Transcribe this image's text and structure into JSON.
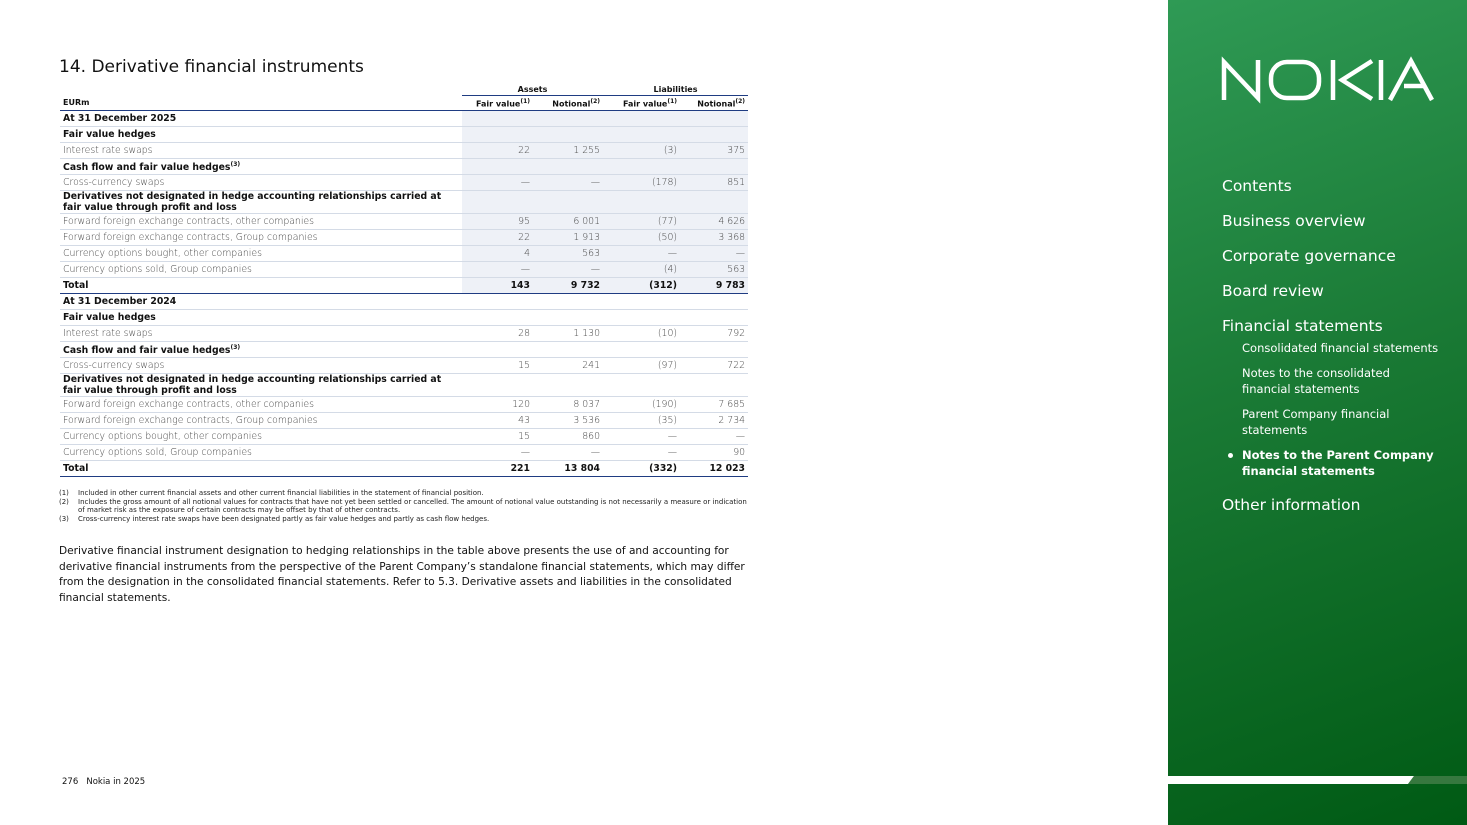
{
  "title": "14. Derivative financial instruments",
  "table": {
    "group_headers": [
      "Assets",
      "Liabilities"
    ],
    "columns": [
      {
        "text": "EURm"
      },
      {
        "text": "Fair value",
        "note": "(1)"
      },
      {
        "text": "Notional",
        "note": "(2)"
      },
      {
        "text": "Fair value",
        "note": "(1)"
      },
      {
        "text": "Notional",
        "note": "(2)"
      }
    ],
    "sections": [
      {
        "heading": "At 31 December 2025",
        "groups": [
          {
            "title": "Fair value hedges",
            "rows": [
              [
                "Interest rate swaps",
                "22",
                "1 255",
                "(3)",
                "375"
              ]
            ]
          },
          {
            "title": "Cash flow and fair value hedges",
            "note": "(3)",
            "rows": [
              [
                "Cross-currency swaps",
                "—",
                "—",
                "(178)",
                "851"
              ]
            ]
          },
          {
            "title": "Derivatives not designated in hedge accounting relationships carried at fair value through profit and loss",
            "rows": [
              [
                "Forward foreign exchange contracts, other companies",
                "95",
                "6 001",
                "(77)",
                "4 626"
              ],
              [
                "Forward foreign exchange contracts, Group companies",
                "22",
                "1 913",
                "(50)",
                "3 368"
              ],
              [
                "Currency options bought, other companies",
                "4",
                "563",
                "—",
                "—"
              ],
              [
                "Currency options sold, Group companies",
                "—",
                "—",
                "(4)",
                "563"
              ]
            ]
          }
        ],
        "total": [
          "Total",
          "143",
          "9 732",
          "(312)",
          "9 783"
        ]
      },
      {
        "heading": "At 31 December 2024",
        "groups": [
          {
            "title": "Fair value hedges",
            "rows": [
              [
                "Interest rate swaps",
                "28",
                "1 130",
                "(10)",
                "792"
              ]
            ]
          },
          {
            "title": "Cash flow and fair value hedges",
            "note": "(3)",
            "rows": [
              [
                "Cross-currency swaps",
                "15",
                "241",
                "(97)",
                "722"
              ]
            ]
          },
          {
            "title": "Derivatives not designated in hedge accounting relationships carried at fair value through profit and loss",
            "rows": [
              [
                "Forward foreign exchange contracts, other companies",
                "120",
                "8 037",
                "(190)",
                "7 685"
              ],
              [
                "Forward foreign exchange contracts, Group companies",
                "43",
                "3 536",
                "(35)",
                "2 734"
              ],
              [
                "Currency options bought, other companies",
                "15",
                "860",
                "—",
                "—"
              ],
              [
                "Currency options sold, Group companies",
                "—",
                "—",
                "—",
                "90"
              ]
            ]
          }
        ],
        "total": [
          "Total",
          "221",
          "13 804",
          "(332)",
          "12 023"
        ]
      }
    ]
  },
  "footnotes": [
    {
      "marker": "(1)",
      "text": "Included in other current financial assets and other current financial liabilities in the statement of financial position."
    },
    {
      "marker": "(2)",
      "text": "Includes the gross amount of all notional values for contracts that have not yet been settled or cancelled. The amount of notional value outstanding is not necessarily a measure or indication of market risk as the exposure of certain contracts may be offset by that of other contracts."
    },
    {
      "marker": "(3)",
      "text": "Cross-currency interest rate swaps have been designated partly as fair value hedges and partly as cash flow hedges."
    }
  ],
  "paragraph": "Derivative financial instrument designation to hedging relationships in the table above presents the use of and accounting for derivative financial instruments from the perspective of the Parent Company’s standalone financial statements, which may differ from the designation in the consolidated financial statements. Refer to 5.3. Derivative assets and liabilities in the consolidated financial statements.",
  "footer": {
    "page": "276",
    "publication": "Nokia in 2025"
  },
  "navigation": {
    "items": [
      {
        "label": "Contents"
      },
      {
        "label": "Business overview"
      },
      {
        "label": "Corporate governance"
      },
      {
        "label": "Board review"
      },
      {
        "label": "Financial statements",
        "subitems": [
          {
            "label": "Consolidated financial statements"
          },
          {
            "label": "Notes to the consolidated financial statements"
          },
          {
            "label": "Parent Company financial statements"
          },
          {
            "label": "Notes to the Parent Company financial statements",
            "active": true
          }
        ]
      },
      {
        "label": "Other information"
      }
    ]
  }
}
